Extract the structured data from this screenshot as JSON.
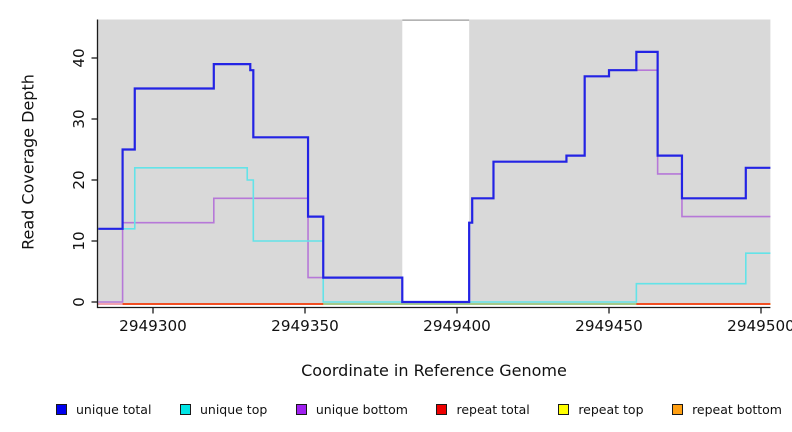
{
  "chart_data": {
    "type": "line",
    "subtype": "step-coverage",
    "title": "",
    "xlabel": "Coordinate in Reference Genome",
    "ylabel": "Read Coverage Depth",
    "x_ticks": [
      2949300,
      2949350,
      2949400,
      2949450,
      2949500
    ],
    "y_ticks": [
      0,
      10,
      20,
      30,
      40
    ],
    "xlim": [
      2949282,
      2949503
    ],
    "ylim": [
      0,
      46
    ],
    "grid": "off",
    "plot_bg": "#d9d9d9",
    "gap_region": {
      "start": 2949382,
      "end": 2949404,
      "fill": "#ffffff"
    },
    "series": [
      {
        "name": "unique total",
        "legend_color": "#0000ee",
        "line_color": "#2323e4",
        "line_width": 2.2,
        "steps": [
          [
            2949282,
            12
          ],
          [
            2949290,
            25
          ],
          [
            2949294,
            35
          ],
          [
            2949320,
            39
          ],
          [
            2949332,
            38
          ],
          [
            2949333,
            27
          ],
          [
            2949351,
            14
          ],
          [
            2949356,
            4
          ],
          [
            2949382,
            0
          ],
          [
            2949404,
            13
          ],
          [
            2949405,
            17
          ],
          [
            2949412,
            23
          ],
          [
            2949436,
            24
          ],
          [
            2949442,
            37
          ],
          [
            2949450,
            38
          ],
          [
            2949459,
            41
          ],
          [
            2949466,
            24
          ],
          [
            2949474,
            17
          ],
          [
            2949495,
            22
          ]
        ]
      },
      {
        "name": "unique top",
        "legend_color": "#00e5e5",
        "line_color": "#63e3e8",
        "line_width": 1.6,
        "steps": [
          [
            2949282,
            12
          ],
          [
            2949294,
            22
          ],
          [
            2949331,
            20
          ],
          [
            2949333,
            10
          ],
          [
            2949356,
            0
          ],
          [
            2949459,
            3
          ],
          [
            2949495,
            8
          ]
        ]
      },
      {
        "name": "unique bottom",
        "legend_color": "#a020f0",
        "line_color": "#b678d8",
        "line_width": 1.6,
        "steps": [
          [
            2949282,
            0
          ],
          [
            2949290,
            13
          ],
          [
            2949320,
            17
          ],
          [
            2949351,
            4
          ],
          [
            2949382,
            0
          ],
          [
            2949404,
            13
          ],
          [
            2949405,
            17
          ],
          [
            2949412,
            23
          ],
          [
            2949436,
            24
          ],
          [
            2949442,
            37
          ],
          [
            2949450,
            38
          ],
          [
            2949466,
            21
          ],
          [
            2949474,
            14
          ]
        ]
      },
      {
        "name": "repeat total",
        "legend_color": "#ee0000",
        "line_color": "#ee2222",
        "line_width": 1.6,
        "steps": [
          [
            2949282,
            0
          ]
        ]
      },
      {
        "name": "repeat top",
        "legend_color": "#ffff00",
        "line_color": "#ffff00",
        "line_width": 1.6,
        "steps": [
          [
            2949282,
            0
          ]
        ]
      },
      {
        "name": "repeat bottom",
        "legend_color": "#ff9f12",
        "line_color": "#ff9414",
        "line_width": 1.8,
        "steps": [
          [
            2949282,
            0
          ]
        ]
      }
    ],
    "overlap_blends": [
      {
        "from": 2949282,
        "to": 2949290,
        "color": "#f2a9c4"
      },
      {
        "from": 2949356,
        "to": 2949459,
        "color": "#9bd59a"
      }
    ],
    "legend": [
      {
        "label": "unique total",
        "color": "#0000ee"
      },
      {
        "label": "unique top",
        "color": "#00e5e5"
      },
      {
        "label": "unique bottom",
        "color": "#a020f0"
      },
      {
        "label": "repeat total",
        "color": "#ee0000"
      },
      {
        "label": "repeat top",
        "color": "#ffff00"
      },
      {
        "label": "repeat bottom",
        "color": "#ff9f12"
      }
    ]
  }
}
